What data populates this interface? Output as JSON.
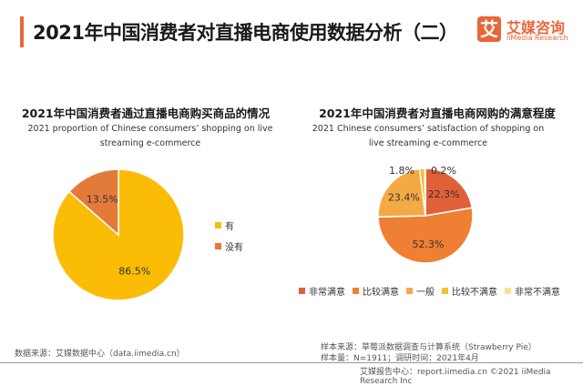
{
  "header": {
    "title": "2021年中国消费者对直播电商使用数据分析（二）",
    "logo_mark": "艾",
    "logo_cn": "艾媒咨询",
    "logo_en": "iiMedia Research",
    "accent": "#e8663a"
  },
  "chart_data": [
    {
      "type": "pie",
      "title": "2021年中国消费者通过直播电商购买商品的情况",
      "subtitle": "2021 proportion of Chinese consumers’ shopping on live streaming e-commerce",
      "slices": [
        {
          "label": "有",
          "value": 86.5,
          "display": "86.5%",
          "color": "#fbbc05"
        },
        {
          "label": "没有",
          "value": 13.5,
          "display": "13.5%",
          "color": "#e27a3a"
        }
      ],
      "legend_position": "right"
    },
    {
      "type": "pie",
      "title": "2021年中国消费者对直播电商网购的满意程度",
      "subtitle": "2021 Chinese consumers’ satisfaction of shopping on live streaming e-commerce",
      "slices": [
        {
          "label": "非常满意",
          "value": 22.3,
          "display": "22.3%",
          "color": "#e0603a"
        },
        {
          "label": "比较满意",
          "value": 52.3,
          "display": "52.3%",
          "color": "#ef7f33"
        },
        {
          "label": "一般",
          "value": 23.4,
          "display": "23.4%",
          "color": "#f5a945"
        },
        {
          "label": "比较不满意",
          "value": 1.8,
          "display": "1.8%",
          "color": "#f2c12e"
        },
        {
          "label": "非常不满意",
          "value": 0.2,
          "display": "0.2%",
          "color": "#f8e29a"
        }
      ],
      "legend_position": "bottom"
    }
  ],
  "footer": {
    "source": "数据来源：艾媒数据中心（data.iimedia.cn）",
    "sample_source": "样本来源：草莓派数据调查与计算系统（Strawberry Pie）",
    "sample_info": "样本量：N=1911；调研时间：2021年4月",
    "copyright": "艾媒报告中心：report.iimedia.cn ©2021 iiMedia Research Inc"
  }
}
